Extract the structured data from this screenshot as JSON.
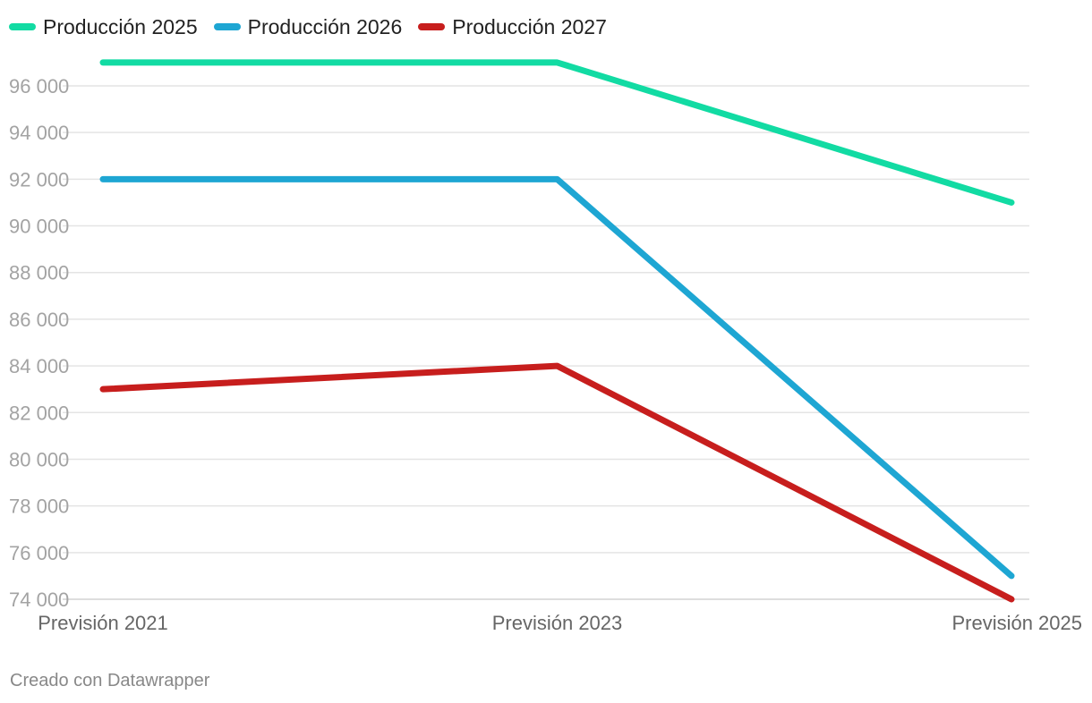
{
  "chart_data": {
    "type": "line",
    "categories": [
      "Previsión 2021",
      "Previsión 2023",
      "Previsión 2025"
    ],
    "series": [
      {
        "name": "Producción 2025",
        "color": "#12dba3",
        "values": [
          97000,
          97000,
          91000
        ]
      },
      {
        "name": "Producción 2026",
        "color": "#1ea6d3",
        "values": [
          92000,
          92000,
          75000
        ]
      },
      {
        "name": "Producción 2027",
        "color": "#c71e1d",
        "values": [
          83000,
          84000,
          74000
        ]
      }
    ],
    "y_ticks": [
      74000,
      76000,
      78000,
      80000,
      82000,
      84000,
      86000,
      88000,
      90000,
      92000,
      94000,
      96000
    ],
    "y_tick_labels": [
      "74 000",
      "76 000",
      "78 000",
      "80 000",
      "82 000",
      "84 000",
      "86 000",
      "88 000",
      "90 000",
      "92 000",
      "94 000",
      "96 000"
    ],
    "ylim": [
      74000,
      97000
    ],
    "title": "",
    "xlabel": "",
    "ylabel": "",
    "grid": true,
    "legend_position": "top-left"
  },
  "footer": {
    "credit": "Creado con Datawrapper"
  }
}
